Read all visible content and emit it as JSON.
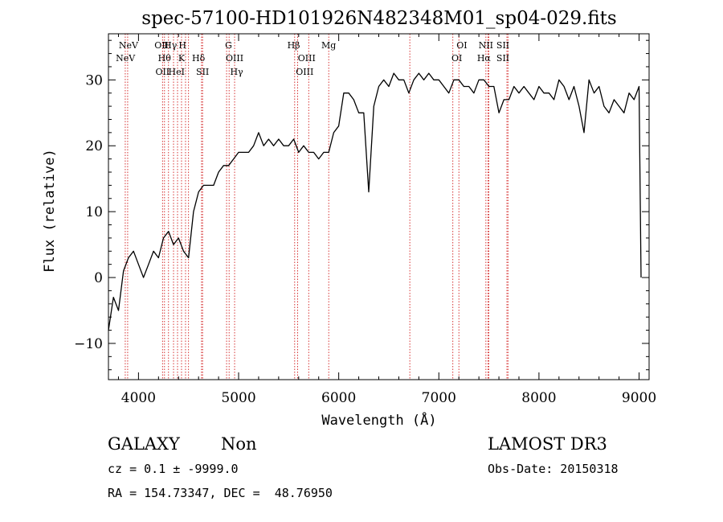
{
  "chart_data": {
    "type": "line",
    "title": "spec-57100-HD101926N482348M01_sp04-029.fits",
    "xlabel": "Wavelength (Å)",
    "ylabel": "Flux (relative)",
    "xlim": [
      3700,
      9100
    ],
    "ylim": [
      -15.5,
      37
    ],
    "xticks": [
      4000,
      5000,
      6000,
      7000,
      8000,
      9000
    ],
    "yticks": [
      -10,
      0,
      10,
      20,
      30
    ],
    "grid": false,
    "series": [
      {
        "color": "#000000",
        "x": [
          3700,
          3750,
          3800,
          3850,
          3900,
          3950,
          4000,
          4050,
          4100,
          4150,
          4200,
          4250,
          4300,
          4350,
          4400,
          4450,
          4500,
          4550,
          4600,
          4650,
          4700,
          4750,
          4800,
          4850,
          4900,
          4950,
          5000,
          5050,
          5100,
          5150,
          5200,
          5250,
          5300,
          5350,
          5400,
          5450,
          5500,
          5550,
          5600,
          5650,
          5700,
          5750,
          5800,
          5850,
          5900,
          5950,
          6000,
          6050,
          6100,
          6150,
          6200,
          6250,
          6300,
          6350,
          6400,
          6450,
          6500,
          6550,
          6600,
          6650,
          6700,
          6750,
          6800,
          6850,
          6900,
          6950,
          7000,
          7050,
          7100,
          7150,
          7200,
          7250,
          7300,
          7350,
          7400,
          7450,
          7500,
          7550,
          7600,
          7650,
          7700,
          7750,
          7800,
          7850,
          7900,
          7950,
          8000,
          8050,
          8100,
          8150,
          8200,
          8250,
          8300,
          8350,
          8400,
          8450,
          8500,
          8550,
          8600,
          8650,
          8700,
          8750,
          8800,
          8850,
          8900,
          8950,
          9000,
          9020
        ],
        "y": [
          -8,
          -3,
          -5,
          1,
          3,
          4,
          2,
          0,
          2,
          4,
          3,
          6,
          7,
          5,
          6,
          4,
          3,
          10,
          13,
          14,
          14,
          14,
          16,
          17,
          17,
          18,
          19,
          19,
          19,
          20,
          22,
          20,
          21,
          20,
          21,
          20,
          20,
          21,
          19,
          20,
          19,
          19,
          18,
          19,
          19,
          22,
          23,
          28,
          28,
          27,
          25,
          25,
          13,
          26,
          29,
          30,
          29,
          31,
          30,
          30,
          28,
          30,
          31,
          30,
          31,
          30,
          30,
          29,
          28,
          30,
          30,
          29,
          29,
          28,
          30,
          30,
          29,
          29,
          25,
          27,
          27,
          29,
          28,
          29,
          28,
          27,
          29,
          28,
          28,
          27,
          30,
          29,
          27,
          29,
          26,
          22,
          30,
          28,
          29,
          26,
          25,
          27,
          26,
          25,
          28,
          27,
          29,
          0
        ]
      }
    ],
    "spectral_lines": [
      {
        "label": "NeV",
        "x": 3870,
        "row": 1
      },
      {
        "label": "NeV",
        "x": 3900,
        "row": 0
      },
      {
        "label": "OII",
        "x": 4230,
        "row": 0
      },
      {
        "label": "Hγ",
        "x": 4320,
        "row": 0
      },
      {
        "label": "H",
        "x": 4440,
        "row": 0
      },
      {
        "label": "Hθ",
        "x": 4260,
        "row": 1
      },
      {
        "label": "K",
        "x": 4430,
        "row": 1
      },
      {
        "label": "OII",
        "x": 4240,
        "row": 2
      },
      {
        "label": "HeI",
        "x": 4380,
        "row": 2
      },
      {
        "label": "Hδ",
        "x": 4600,
        "row": 1
      },
      {
        "label": "SII",
        "x": 4640,
        "row": 2
      },
      {
        "label": "G",
        "x": 4900,
        "row": 0
      },
      {
        "label": "OIII",
        "x": 4960,
        "row": 1
      },
      {
        "label": "Hγ",
        "x": 4980,
        "row": 2
      },
      {
        "label": "Hβ",
        "x": 5550,
        "row": 0
      },
      {
        "label": "OIII",
        "x": 5680,
        "row": 1
      },
      {
        "label": "OIII",
        "x": 5660,
        "row": 2
      },
      {
        "label": "Mg",
        "x": 5900,
        "row": 0
      },
      {
        "label": "OI",
        "x": 7230,
        "row": 0
      },
      {
        "label": "OI",
        "x": 7180,
        "row": 1
      },
      {
        "label": "NII",
        "x": 7470,
        "row": 0
      },
      {
        "label": "SII",
        "x": 7640,
        "row": 0
      },
      {
        "label": "Hα",
        "x": 7450,
        "row": 1
      },
      {
        "label": "SII",
        "x": 7640,
        "row": 1
      }
    ],
    "line_markers_x": [
      3868,
      3892,
      4240,
      4260,
      4300,
      4350,
      4390,
      4430,
      4470,
      4500,
      4630,
      4640,
      4880,
      4905,
      4960,
      5560,
      5590,
      5700,
      5900,
      6710,
      7140,
      7200,
      7470,
      7490,
      7500,
      7680,
      7690
    ]
  },
  "info": {
    "class_label": "GALAXY",
    "subclass_label": "Non",
    "survey_label": "LAMOST DR3",
    "cz_text": "cz = 0.1 ± -9999.0",
    "obsdate_text": "Obs-Date: 20150318",
    "radec_text": "RA = 154.73347, DEC =  48.76950"
  }
}
